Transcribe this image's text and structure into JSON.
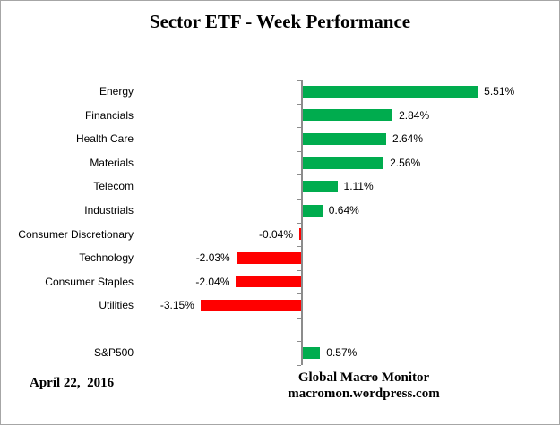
{
  "title": "Sector ETF - Week Performance",
  "chart_data": {
    "type": "bar",
    "orientation": "horizontal",
    "title": "Sector ETF - Week Performance",
    "categories": [
      "Energy",
      "Financials",
      "Health Care",
      "Materials",
      "Telecom",
      "Industrials",
      "Consumer Discretionary",
      "Technology",
      "Consumer Staples",
      "Utilities",
      "",
      "S&P500"
    ],
    "values": [
      5.51,
      2.84,
      2.64,
      2.56,
      1.11,
      0.64,
      -0.04,
      -2.03,
      -2.04,
      -3.15,
      null,
      0.57
    ],
    "value_labels": [
      "5.51%",
      "2.84%",
      "2.64%",
      "2.56%",
      "1.11%",
      "0.64%",
      "-0.04%",
      "-2.03%",
      "-2.04%",
      "-3.15%",
      "",
      "0.57%"
    ],
    "xlim": [
      -3.5,
      6.5
    ],
    "grid": false,
    "legend": "none",
    "colors": {
      "positive": "#00AC4E",
      "negative": "#FF0000",
      "axis": "#8C8C8C",
      "border": "#A6A6A6",
      "text": "#000000"
    }
  },
  "footer": {
    "date": "April 22,  2016",
    "credit_line1": "Global Macro Monitor",
    "credit_line2": "macromon.wordpress.com"
  }
}
